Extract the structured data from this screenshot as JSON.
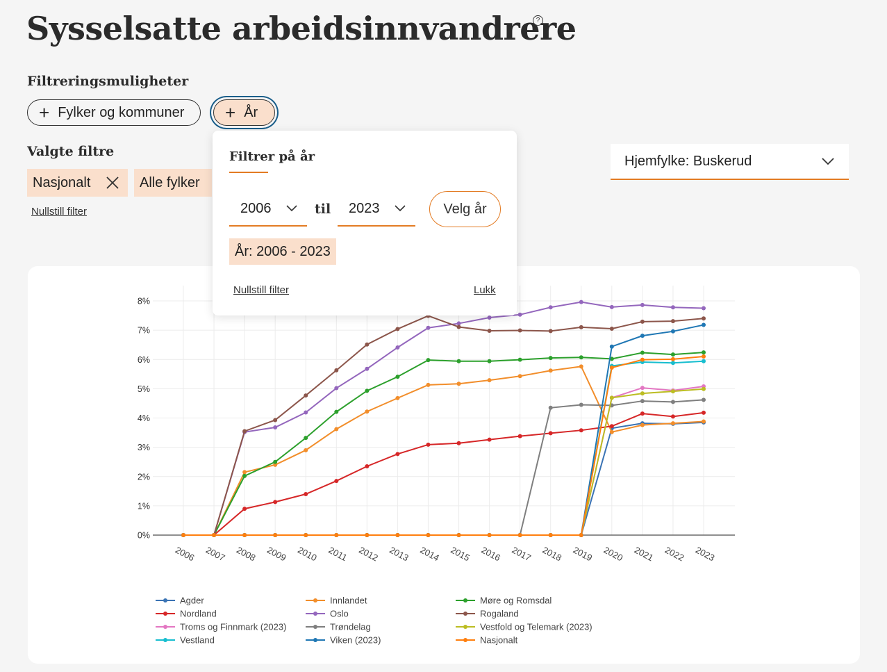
{
  "page": {
    "title": "Sysselsatte arbeidsinnvandrere",
    "help_icon": "question-circle-icon"
  },
  "filters": {
    "heading": "Filtreringsmuligheter",
    "buttons": [
      {
        "label": "Fylker og kommuner",
        "icon": "plus-icon"
      },
      {
        "label": "År",
        "icon": "plus-icon"
      }
    ],
    "selected_heading": "Valgte filtre",
    "selected": [
      {
        "label": "Nasjonalt",
        "removable": true
      },
      {
        "label": "Alle fylker",
        "removable": false
      }
    ],
    "reset_label": "Nullstill filter"
  },
  "year_popup": {
    "title": "Filtrer på år",
    "from_year": "2006",
    "to_label": "til",
    "to_year": "2023",
    "apply_label": "Velg år",
    "range_chip": "År: 2006 - 2023",
    "reset_label": "Nullstill filter",
    "close_label": "Lukk"
  },
  "home_county_select": {
    "value": "Hjemfylke: Buskerud"
  },
  "colors": {
    "accent": "#e37b23",
    "chip_bg": "#fadfcc",
    "focus_ring": "#1a5e8a"
  },
  "chart_data": {
    "type": "line",
    "x": [
      "2006",
      "2007",
      "2008",
      "2009",
      "2010",
      "2011",
      "2012",
      "2013",
      "2014",
      "2015",
      "2016",
      "2017",
      "2018",
      "2019",
      "2020",
      "2021",
      "2022",
      "2023"
    ],
    "ylim": [
      0,
      8
    ],
    "yticks": [
      "0%",
      "1%",
      "2%",
      "3%",
      "4%",
      "5%",
      "6%",
      "7%",
      "8%"
    ],
    "grid": true,
    "legend_position": "bottom",
    "series": [
      {
        "name": "Agder",
        "color": "#3a73b4",
        "values": [
          0,
          0,
          0,
          0,
          0,
          0,
          0,
          0,
          0,
          0,
          0,
          0,
          0,
          0,
          3.65,
          3.82,
          3.8,
          3.85
        ]
      },
      {
        "name": "Innlandet",
        "color": "#f28e2b",
        "values": [
          0,
          0,
          2.15,
          2.4,
          2.9,
          3.62,
          4.22,
          4.68,
          5.13,
          5.17,
          5.29,
          5.43,
          5.62,
          5.76,
          3.52,
          3.76,
          3.82,
          3.88
        ]
      },
      {
        "name": "Møre og Romsdal",
        "color": "#2ca02c",
        "values": [
          0,
          0,
          2.02,
          2.5,
          3.32,
          4.21,
          4.93,
          5.41,
          5.98,
          5.94,
          5.94,
          5.99,
          6.05,
          6.07,
          6.02,
          6.23,
          6.17,
          6.24
        ]
      },
      {
        "name": "Nordland",
        "color": "#d62728",
        "values": [
          0,
          0,
          0.9,
          1.13,
          1.4,
          1.85,
          2.35,
          2.77,
          3.09,
          3.14,
          3.26,
          3.38,
          3.48,
          3.58,
          3.72,
          4.15,
          4.05,
          4.18
        ]
      },
      {
        "name": "Oslo",
        "color": "#9467bd",
        "values": [
          0,
          0,
          3.52,
          3.68,
          4.19,
          5.02,
          5.68,
          6.41,
          7.08,
          7.23,
          7.43,
          7.53,
          7.78,
          7.96,
          7.79,
          7.86,
          7.78,
          7.75
        ]
      },
      {
        "name": "Rogaland",
        "color": "#8c564b",
        "values": [
          0,
          0,
          3.55,
          3.93,
          4.77,
          5.63,
          6.51,
          7.04,
          7.49,
          7.11,
          6.98,
          6.99,
          6.97,
          7.1,
          7.05,
          7.29,
          7.31,
          7.4
        ]
      },
      {
        "name": "Troms og Finnmark (2023)",
        "color": "#e377c2",
        "values": [
          0,
          0,
          0,
          0,
          0,
          0,
          0,
          0,
          0,
          0,
          0,
          0,
          0,
          0,
          4.69,
          5.03,
          4.94,
          5.08
        ]
      },
      {
        "name": "Trøndelag",
        "color": "#7f7f7f",
        "values": [
          0,
          0,
          0,
          0,
          0,
          0,
          0,
          0,
          0,
          0,
          0,
          0,
          4.35,
          4.45,
          4.43,
          4.58,
          4.55,
          4.62
        ]
      },
      {
        "name": "Vestfold og Telemark (2023)",
        "color": "#bcbd22",
        "values": [
          0,
          0,
          0,
          0,
          0,
          0,
          0,
          0,
          0,
          0,
          0,
          0,
          0,
          0,
          4.69,
          4.84,
          4.91,
          4.99
        ]
      },
      {
        "name": "Vestland",
        "color": "#17becf",
        "values": [
          0,
          0,
          0,
          0,
          0,
          0,
          0,
          0,
          0,
          0,
          0,
          0,
          0,
          0,
          5.78,
          5.91,
          5.88,
          5.94
        ]
      },
      {
        "name": "Viken (2023)",
        "color": "#1f77b4",
        "values": [
          0,
          0,
          0,
          0,
          0,
          0,
          0,
          0,
          0,
          0,
          0,
          0,
          0,
          0,
          6.44,
          6.81,
          6.96,
          7.18
        ]
      },
      {
        "name": "Nasjonalt",
        "color": "#ff7f0e",
        "values": [
          0,
          0,
          0,
          0,
          0,
          0,
          0,
          0,
          0,
          0,
          0,
          0,
          0,
          0,
          5.72,
          5.99,
          6.01,
          6.1
        ]
      }
    ]
  }
}
